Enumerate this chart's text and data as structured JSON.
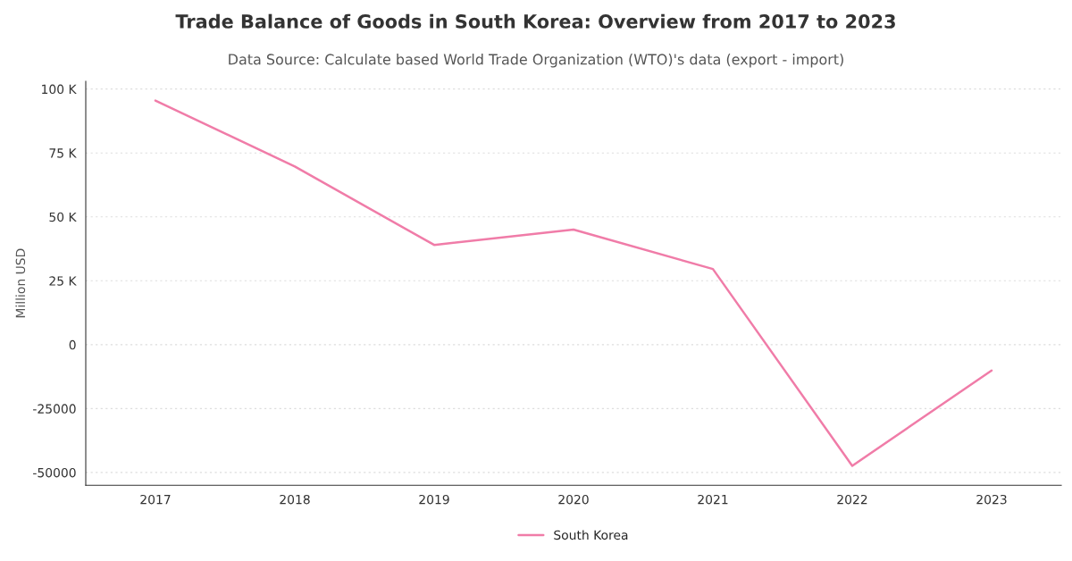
{
  "chart_data": {
    "type": "line",
    "title": "Trade Balance of Goods in South Korea: Overview from 2017 to 2023",
    "subtitle": "Data Source: Calculate based World Trade Organization (WTO)'s data (export - import)",
    "ylabel": "Million USD",
    "categories": [
      "2017",
      "2018",
      "2019",
      "2020",
      "2021",
      "2022",
      "2023"
    ],
    "series": [
      {
        "name": "South Korea",
        "color": "#f07ca8",
        "values": [
          95500,
          69700,
          39000,
          45000,
          29600,
          -47400,
          -10100
        ]
      }
    ],
    "ylim": [
      -55000,
      103000
    ],
    "yticks": [
      {
        "value": -50000,
        "label": "-50000"
      },
      {
        "value": -25000,
        "label": "-25000"
      },
      0,
      {
        "value": 25000,
        "label": "25 K"
      },
      {
        "value": 50000,
        "label": "50 K"
      },
      {
        "value": 75000,
        "label": "75 K"
      },
      {
        "value": 100000,
        "label": "100 K"
      }
    ],
    "grid": "y",
    "legend": "bottom",
    "marker": "none",
    "line_style": "solid"
  }
}
